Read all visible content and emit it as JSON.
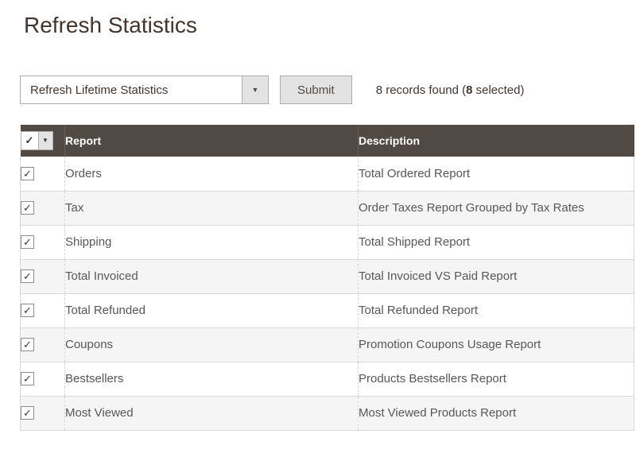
{
  "page": {
    "title": "Refresh Statistics"
  },
  "toolbar": {
    "action_select": {
      "value": "Refresh Lifetime Statistics"
    },
    "submit_label": "Submit",
    "records": {
      "prefix": "8 records found (",
      "selected": "8",
      "suffix": " selected)"
    }
  },
  "table": {
    "columns": {
      "report": "Report",
      "description": "Description"
    },
    "select_all_checked": true,
    "rows": [
      {
        "checked": true,
        "report": "Orders",
        "description": "Total Ordered Report"
      },
      {
        "checked": true,
        "report": "Tax",
        "description": "Order Taxes Report Grouped by Tax Rates"
      },
      {
        "checked": true,
        "report": "Shipping",
        "description": "Total Shipped Report"
      },
      {
        "checked": true,
        "report": "Total Invoiced",
        "description": "Total Invoiced VS Paid Report"
      },
      {
        "checked": true,
        "report": "Total Refunded",
        "description": "Total Refunded Report"
      },
      {
        "checked": true,
        "report": "Coupons",
        "description": "Promotion Coupons Usage Report"
      },
      {
        "checked": true,
        "report": "Bestsellers",
        "description": "Products Bestsellers Report"
      },
      {
        "checked": true,
        "report": "Most Viewed",
        "description": "Most Viewed Products Report"
      }
    ]
  },
  "icons": {
    "checkmark": "✓",
    "dropdown_arrow": "▼"
  },
  "colors": {
    "header_bg": "#514943",
    "header_text": "#ffffff",
    "title_text": "#41362f",
    "cell_text": "#575757",
    "row_alt_bg": "#f5f5f5",
    "row_border": "#d9d9d9",
    "control_border": "#adadad",
    "button_bg": "#e3e3e3"
  }
}
